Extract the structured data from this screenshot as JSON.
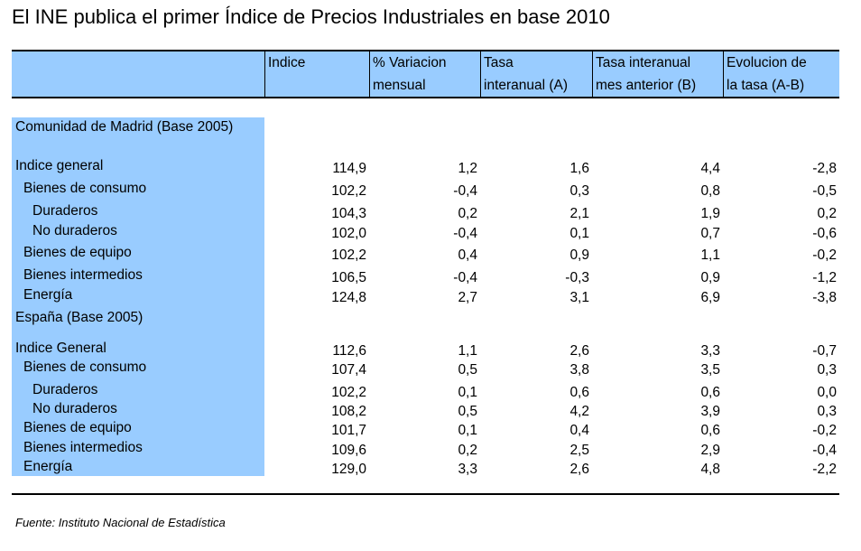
{
  "title": "El INE publica el primer Índice de Precios Industriales en base 2010",
  "header": {
    "columns": [
      {
        "line1": "",
        "line2": ""
      },
      {
        "line1": "Indice",
        "line2": ""
      },
      {
        "line1": "% Variacion",
        "line2": "mensual"
      },
      {
        "line1": "Tasa",
        "line2": "interanual (A)"
      },
      {
        "line1": "Tasa interanual",
        "line2": "mes anterior (B)"
      },
      {
        "line1": "Evolucion de",
        "line2": "la tasa (A-B)"
      }
    ]
  },
  "rows": [
    {
      "label": "Comunidad de Madrid (Base 2005)",
      "level": 0,
      "values": []
    },
    {
      "label": "Indice general",
      "level": 0,
      "values": [
        "114,9",
        "1,2",
        "1,6",
        "4,4",
        "-2,8"
      ]
    },
    {
      "label": "Bienes de consumo",
      "level": 1,
      "values": [
        "102,2",
        "-0,4",
        "0,3",
        "0,8",
        "-0,5"
      ]
    },
    {
      "label": "Duraderos",
      "level": 2,
      "values": [
        "104,3",
        "0,2",
        "2,1",
        "1,9",
        "0,2"
      ]
    },
    {
      "label": "No duraderos",
      "level": 2,
      "values": [
        "102,0",
        "-0,4",
        "0,1",
        "0,7",
        "-0,6"
      ]
    },
    {
      "label": "Bienes de equipo",
      "level": 1,
      "values": [
        "102,2",
        "0,4",
        "0,9",
        "1,1",
        "-0,2"
      ]
    },
    {
      "label": "Bienes intermedios",
      "level": 1,
      "values": [
        "106,5",
        "-0,4",
        "-0,3",
        "0,9",
        "-1,2"
      ]
    },
    {
      "label": "Energía",
      "level": 1,
      "values": [
        "124,8",
        "2,7",
        "3,1",
        "6,9",
        "-3,8"
      ]
    },
    {
      "label": "España (Base 2005)",
      "level": 0,
      "values": []
    },
    {
      "label": "Indice General",
      "level": 0,
      "values": [
        "112,6",
        "1,1",
        "2,6",
        "3,3",
        "-0,7"
      ]
    },
    {
      "label": "Bienes de consumo",
      "level": 1,
      "values": [
        "107,4",
        "0,5",
        "3,8",
        "3,5",
        "0,3"
      ]
    },
    {
      "label": "Duraderos",
      "level": 2,
      "values": [
        "102,2",
        "0,1",
        "0,6",
        "0,6",
        "0,0"
      ]
    },
    {
      "label": "No duraderos",
      "level": 2,
      "values": [
        "108,2",
        "0,5",
        "4,2",
        "3,9",
        "0,3"
      ]
    },
    {
      "label": "Bienes de equipo",
      "level": 1,
      "values": [
        "101,7",
        "0,1",
        "0,4",
        "0,6",
        "-0,2"
      ]
    },
    {
      "label": "Bienes intermedios",
      "level": 1,
      "values": [
        "109,6",
        "0,2",
        "2,5",
        "2,9",
        "-0,4"
      ]
    },
    {
      "label": "Energía",
      "level": 1,
      "values": [
        "129,0",
        "3,3",
        "2,6",
        "4,8",
        "-2,2"
      ]
    }
  ],
  "source": "Fuente: Instituto Nacional de Estadística"
}
